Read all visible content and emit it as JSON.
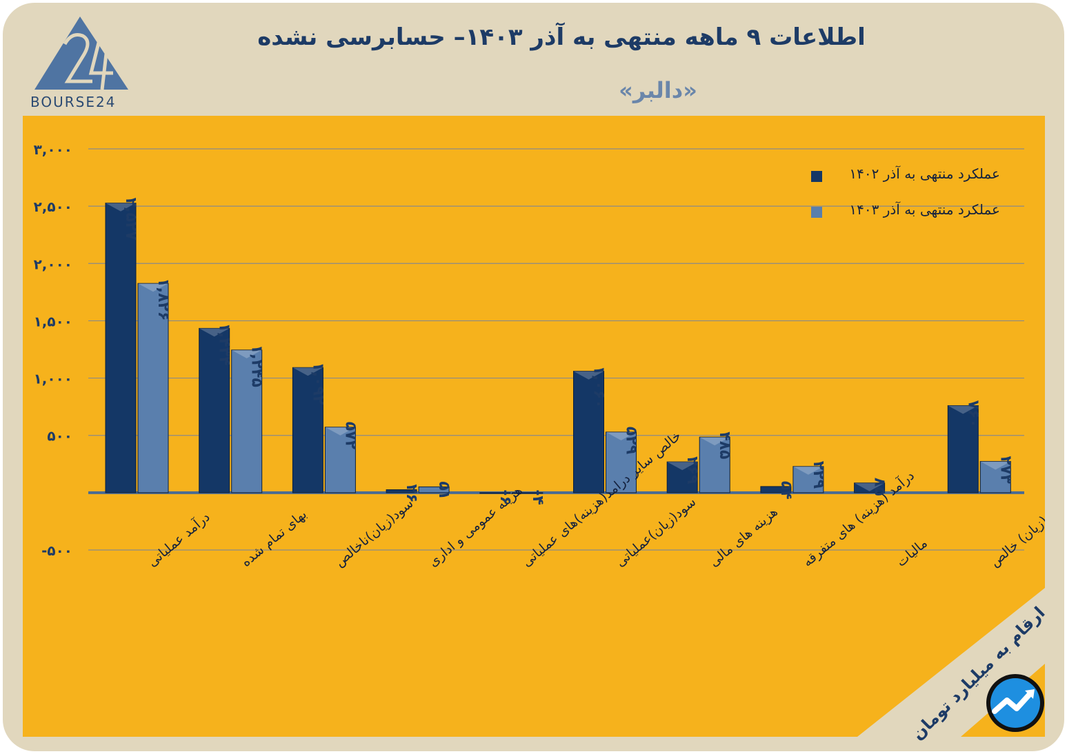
{
  "header": {
    "title": "اطلاعات ۹ ماهه منتهی به آذر ۱۴۰۳– حسابرسی نشده",
    "subtitle": "«دالبر»",
    "logo_text": "BOURSE24"
  },
  "footer": {
    "unit_note": "ارقام به میلیارد تومان"
  },
  "colors": {
    "background": "#e1d7bd",
    "panel": "#f6b21c",
    "series_1402": "#143766",
    "series_1403": "#5a7fad",
    "axis_line": "#4a6b93",
    "title": "#1d3b66"
  },
  "chart_data": {
    "type": "bar",
    "categories": [
      "درآمد عملیاتی",
      "بهای تمام شده",
      "سود(زیان)ناخالص",
      "هزینه عمومی و اداری",
      "خالص سایر درامد(هزینه)های عملیاتی",
      "سود(زیان)عملیاتی",
      "هزینه های مالی",
      "درآمد (هزینه) های متفرقه",
      "مالیات",
      "سود(زیان) خالص"
    ],
    "series": [
      {
        "name": "عملکرد منتهی به آذر ۱۴۰۲",
        "values": [
          2527,
          1434,
          1092,
          26,
          -6,
          1060,
          269,
          54,
          85,
          760
        ],
        "labels": [
          "۲,۵۲۷",
          "۱,۴۳۴",
          "۱,۰۹۲",
          "۲۶",
          "-۶",
          "۱,۰۶۰",
          "۲۶۹",
          "۵۴",
          "۸۵",
          "۷۶۰"
        ]
      },
      {
        "name": "عملکرد منتهی به آذر ۱۴۰۳",
        "values": [
          1826,
          1245,
          572,
          51,
          -4,
          529,
          485,
          229,
          null,
          273
        ],
        "labels": [
          "۱,۸۲۶",
          "۱,۲۴۵",
          "۵۷۲",
          "۵۱",
          "-۴",
          "۵۲۹",
          "۴۸۵",
          "۲۲۹",
          null,
          "۲۷۳"
        ]
      }
    ],
    "y_ticks": [
      3000,
      2500,
      2000,
      1500,
      1000,
      500,
      0,
      -500
    ],
    "y_tick_labels": [
      "۳,۰۰۰",
      "۲,۵۰۰",
      "۲,۰۰۰",
      "۱,۵۰۰",
      "۱,۰۰۰",
      "۵۰۰",
      "",
      "-۵۰۰"
    ],
    "ylim": [
      -500,
      3000
    ],
    "grid": true,
    "legend": "top-right"
  }
}
